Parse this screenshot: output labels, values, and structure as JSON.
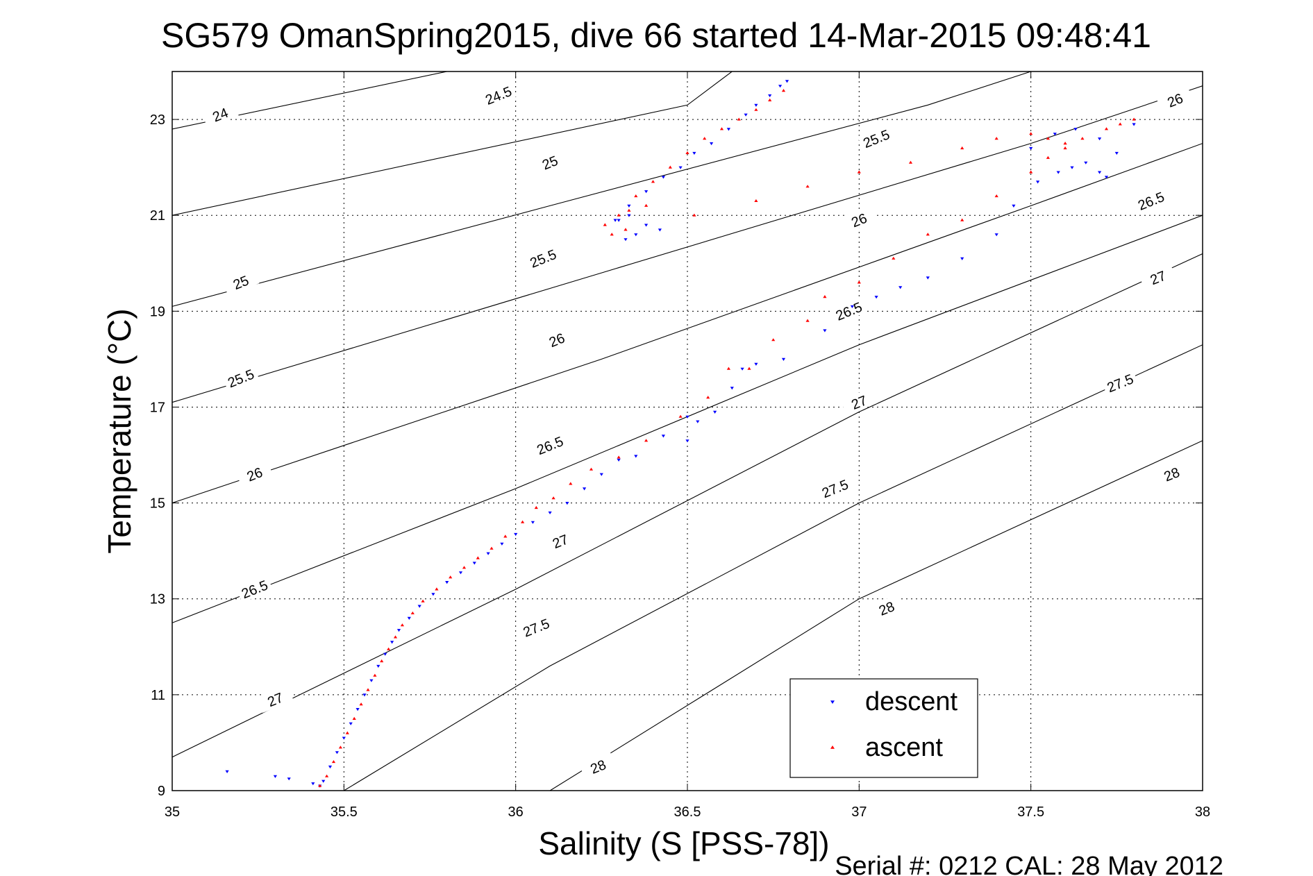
{
  "chart_data": {
    "type": "scatter",
    "title": "SG579 OmanSpring2015, dive 66 started 14-Mar-2015 09:48:41",
    "xlabel": "Salinity (S [PSS-78])",
    "ylabel": "Temperature (°C)",
    "footer": "Serial #: 0212  CAL: 28 May 2012",
    "xlim": [
      35,
      38
    ],
    "ylim": [
      9,
      24
    ],
    "xticks": [
      35,
      35.5,
      36,
      36.5,
      37,
      37.5,
      38
    ],
    "xtick_labels": [
      "35",
      "35.5",
      "36",
      "36.5",
      "37",
      "37.5",
      "38"
    ],
    "yticks": [
      9,
      11,
      13,
      15,
      17,
      19,
      21,
      23
    ],
    "ytick_labels": [
      "9",
      "11",
      "13",
      "15",
      "17",
      "19",
      "21",
      "23"
    ],
    "grid": true,
    "legend_position": "bottom-right",
    "density_contours": {
      "levels": [
        {
          "level": 24,
          "label": "24",
          "points": [
            [
              35,
              22.8
            ],
            [
              35.8,
              24
            ]
          ]
        },
        {
          "level": 24.5,
          "label": "24.5",
          "points": [
            [
              35,
              21.0
            ],
            [
              36.5,
              23.3
            ],
            [
              36.63,
              24
            ]
          ]
        },
        {
          "level": 25,
          "label": "25",
          "points": [
            [
              35,
              19.1
            ],
            [
              36.1,
              21.2
            ],
            [
              37.2,
              23.3
            ],
            [
              37.5,
              24
            ]
          ]
        },
        {
          "level": 25.5,
          "label": "25.5",
          "points": [
            [
              35,
              17.1
            ],
            [
              36.25,
              19.8
            ],
            [
              37.5,
              22.5
            ],
            [
              38,
              23.7
            ]
          ]
        },
        {
          "level": 26,
          "label": "26",
          "points": [
            [
              35,
              15.0
            ],
            [
              36.25,
              18.0
            ],
            [
              37.5,
              21.2
            ],
            [
              38,
              22.5
            ]
          ]
        },
        {
          "level": 26.5,
          "label": "26.5",
          "points": [
            [
              35,
              12.5
            ],
            [
              36.0,
              15.3
            ],
            [
              37.0,
              18.3
            ],
            [
              38,
              21.0
            ]
          ]
        },
        {
          "level": 27,
          "label": "27",
          "points": [
            [
              35,
              9.7
            ],
            [
              36.0,
              13.2
            ],
            [
              37.0,
              16.9
            ],
            [
              38,
              20.2
            ]
          ]
        },
        {
          "level": 27.5,
          "label": "27.5",
          "points": [
            [
              35.5,
              9
            ],
            [
              36.1,
              11.6
            ],
            [
              37.0,
              15.0
            ],
            [
              38,
              18.3
            ]
          ]
        },
        {
          "level": 28,
          "label": "28",
          "points": [
            [
              36.1,
              9
            ],
            [
              37.0,
              13.0
            ],
            [
              38,
              16.3
            ]
          ]
        }
      ],
      "labels": [
        {
          "text": "24",
          "at": [
            35.14,
            23.1
          ]
        },
        {
          "text": "24.5",
          "at": [
            35.95,
            23.5
          ]
        },
        {
          "text": "25",
          "at": [
            36.1,
            22.1
          ]
        },
        {
          "text": "25",
          "at": [
            35.2,
            19.6
          ]
        },
        {
          "text": "25.5",
          "at": [
            37.05,
            22.6
          ]
        },
        {
          "text": "25.5",
          "at": [
            36.08,
            20.1
          ]
        },
        {
          "text": "25.5",
          "at": [
            35.2,
            17.6
          ]
        },
        {
          "text": "26",
          "at": [
            37.92,
            23.4
          ]
        },
        {
          "text": "26",
          "at": [
            37.0,
            20.9
          ]
        },
        {
          "text": "26",
          "at": [
            36.12,
            18.4
          ]
        },
        {
          "text": "26",
          "at": [
            35.24,
            15.6
          ]
        },
        {
          "text": "26.5",
          "at": [
            37.85,
            21.3
          ]
        },
        {
          "text": "26.5",
          "at": [
            36.97,
            19.0
          ]
        },
        {
          "text": "26.5",
          "at": [
            36.1,
            16.2
          ]
        },
        {
          "text": "26.5",
          "at": [
            35.24,
            13.2
          ]
        },
        {
          "text": "27",
          "at": [
            37.87,
            19.7
          ]
        },
        {
          "text": "27",
          "at": [
            37.0,
            17.1
          ]
        },
        {
          "text": "27",
          "at": [
            36.13,
            14.2
          ]
        },
        {
          "text": "27",
          "at": [
            35.3,
            10.9
          ]
        },
        {
          "text": "27.5",
          "at": [
            37.76,
            17.5
          ]
        },
        {
          "text": "27.5",
          "at": [
            36.93,
            15.3
          ]
        },
        {
          "text": "27.5",
          "at": [
            36.06,
            12.4
          ]
        },
        {
          "text": "28",
          "at": [
            37.91,
            15.6
          ]
        },
        {
          "text": "28",
          "at": [
            37.08,
            12.8
          ]
        },
        {
          "text": "28",
          "at": [
            36.24,
            9.5
          ]
        }
      ]
    },
    "series": [
      {
        "name": "descent",
        "color": "#0000ff",
        "marker": "triangle-down",
        "x": [
          35.16,
          35.3,
          35.34,
          35.41,
          35.43,
          35.44,
          35.46,
          35.48,
          35.5,
          35.52,
          35.54,
          35.56,
          35.58,
          35.6,
          35.62,
          35.64,
          35.66,
          35.69,
          35.72,
          35.76,
          35.8,
          35.84,
          35.88,
          35.92,
          35.96,
          36.0,
          36.05,
          36.1,
          36.15,
          36.2,
          36.25,
          36.3,
          36.35,
          36.43,
          36.5,
          36.5,
          36.53,
          36.58,
          36.63,
          36.66,
          36.7,
          36.78,
          36.9,
          36.98,
          37.05,
          37.12,
          37.2,
          37.3,
          37.4,
          37.45,
          37.52,
          37.58,
          37.62,
          37.66,
          37.7,
          37.72,
          37.75,
          37.8,
          37.57,
          37.63,
          37.7,
          37.5,
          36.29,
          36.33,
          36.38,
          36.43,
          36.48,
          36.52,
          36.57,
          36.62,
          36.67,
          36.7,
          36.74,
          36.77,
          36.79,
          36.32,
          36.35,
          36.3,
          36.38,
          36.42,
          36.33
        ],
        "y": [
          9.4,
          9.3,
          9.25,
          9.15,
          9.1,
          9.2,
          9.5,
          9.8,
          10.1,
          10.4,
          10.7,
          11.0,
          11.3,
          11.6,
          11.85,
          12.1,
          12.35,
          12.6,
          12.85,
          13.1,
          13.35,
          13.55,
          13.75,
          13.95,
          14.15,
          14.35,
          14.6,
          14.8,
          15.0,
          15.3,
          15.6,
          15.9,
          15.98,
          16.4,
          16.8,
          16.3,
          16.7,
          16.9,
          17.4,
          17.8,
          17.9,
          18.0,
          18.6,
          19.1,
          19.3,
          19.5,
          19.7,
          20.1,
          20.6,
          21.2,
          21.7,
          21.9,
          22.0,
          22.1,
          21.9,
          21.8,
          22.3,
          22.9,
          22.7,
          22.8,
          22.6,
          22.4,
          20.9,
          21.2,
          21.5,
          21.8,
          22.0,
          22.3,
          22.5,
          22.8,
          23.1,
          23.3,
          23.5,
          23.7,
          23.8,
          20.5,
          20.6,
          20.9,
          20.8,
          20.7,
          21.0
        ]
      },
      {
        "name": "ascent",
        "color": "#ff0000",
        "marker": "triangle-up",
        "x": [
          35.43,
          35.45,
          35.47,
          35.49,
          35.51,
          35.53,
          35.55,
          35.57,
          35.59,
          35.61,
          35.63,
          35.65,
          35.67,
          35.7,
          35.73,
          35.77,
          35.81,
          35.85,
          35.89,
          35.93,
          35.97,
          36.02,
          36.06,
          36.11,
          36.16,
          36.22,
          36.3,
          36.38,
          36.48,
          36.56,
          36.62,
          36.68,
          36.75,
          36.85,
          36.9,
          37.0,
          37.1,
          37.2,
          37.3,
          37.4,
          37.5,
          37.55,
          37.6,
          37.65,
          37.72,
          37.76,
          37.8,
          36.3,
          36.35,
          36.4,
          36.45,
          36.5,
          36.55,
          36.6,
          36.65,
          36.7,
          36.74,
          36.78,
          36.26,
          36.33,
          36.38,
          36.52,
          36.7,
          36.85,
          37.0,
          37.15,
          37.3,
          37.4,
          37.5,
          37.55,
          37.6,
          36.28,
          36.32
        ],
        "y": [
          9.1,
          9.3,
          9.6,
          9.9,
          10.2,
          10.5,
          10.8,
          11.1,
          11.4,
          11.7,
          11.95,
          12.2,
          12.45,
          12.7,
          12.95,
          13.2,
          13.45,
          13.65,
          13.85,
          14.05,
          14.3,
          14.6,
          14.9,
          15.1,
          15.4,
          15.7,
          15.95,
          16.3,
          16.8,
          17.2,
          17.8,
          17.8,
          18.4,
          18.8,
          19.3,
          19.6,
          20.1,
          20.6,
          20.9,
          21.4,
          21.9,
          22.2,
          22.4,
          22.6,
          22.8,
          22.9,
          23.0,
          21.0,
          21.4,
          21.7,
          22.0,
          22.3,
          22.6,
          22.8,
          23.0,
          23.2,
          23.4,
          23.6,
          20.8,
          21.1,
          21.2,
          21.0,
          21.3,
          21.6,
          21.9,
          22.1,
          22.4,
          22.6,
          22.7,
          22.6,
          22.5,
          20.6,
          20.7
        ]
      }
    ]
  }
}
